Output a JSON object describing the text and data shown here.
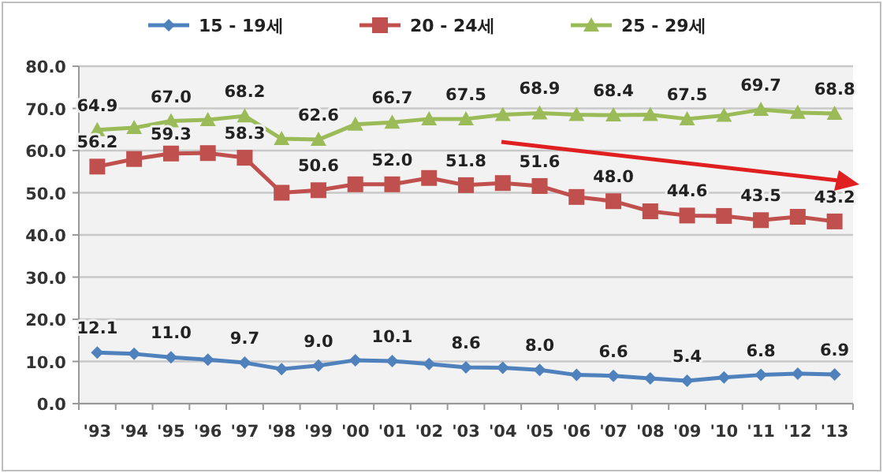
{
  "chart_data": {
    "type": "line",
    "categories": [
      "'93",
      "'94",
      "'95",
      "'96",
      "'97",
      "'98",
      "'99",
      "'00",
      "'01",
      "'02",
      "'03",
      "'04",
      "'05",
      "'06",
      "'07",
      "'08",
      "'09",
      "'10",
      "'11",
      "'12",
      "'13"
    ],
    "series": [
      {
        "name": "15 - 19세",
        "color": "#4f81bd",
        "marker": "diamond",
        "values": [
          12.1,
          11.8,
          11.0,
          10.4,
          9.7,
          8.2,
          9.0,
          10.3,
          10.1,
          9.4,
          8.6,
          8.5,
          8.0,
          6.8,
          6.6,
          6.0,
          5.4,
          6.2,
          6.8,
          7.1,
          6.9
        ],
        "value_labels": [
          "12.1",
          null,
          "11.0",
          null,
          "9.7",
          null,
          "9.0",
          null,
          "10.1",
          null,
          "8.6",
          null,
          "8.0",
          null,
          "6.6",
          null,
          "5.4",
          null,
          "6.8",
          null,
          "6.9"
        ]
      },
      {
        "name": "20 - 24세",
        "color": "#c0504d",
        "marker": "square",
        "values": [
          56.2,
          58.0,
          59.3,
          59.4,
          58.3,
          50.0,
          50.6,
          52.0,
          52.0,
          53.5,
          51.8,
          52.3,
          51.6,
          49.0,
          48.0,
          45.6,
          44.6,
          44.5,
          43.5,
          44.3,
          43.2
        ],
        "value_labels": [
          "56.2",
          null,
          "59.3",
          null,
          "58.3",
          null,
          "50.6",
          null,
          "52.0",
          null,
          "51.8",
          null,
          "51.6",
          null,
          "48.0",
          null,
          "44.6",
          null,
          "43.5",
          null,
          "43.2"
        ]
      },
      {
        "name": "25 - 29세",
        "color": "#9bbb59",
        "marker": "triangle",
        "values": [
          64.9,
          65.4,
          67.0,
          67.3,
          68.2,
          62.8,
          62.6,
          66.2,
          66.7,
          67.5,
          67.5,
          68.5,
          68.9,
          68.5,
          68.4,
          68.5,
          67.5,
          68.3,
          69.7,
          69.0,
          68.8
        ],
        "value_labels": [
          "64.9",
          null,
          "67.0",
          null,
          "68.2",
          null,
          "62.6",
          null,
          "66.7",
          null,
          "67.5",
          null,
          "68.9",
          null,
          "68.4",
          null,
          "67.5",
          null,
          "69.7",
          null,
          "68.8"
        ]
      }
    ],
    "ylim": [
      0,
      80
    ],
    "yticks": [
      {
        "value": 0,
        "label": "0.0"
      },
      {
        "value": 10,
        "label": "10.0"
      },
      {
        "value": 20,
        "label": "20.0"
      },
      {
        "value": 30,
        "label": "30.0"
      },
      {
        "value": 40,
        "label": "40.0"
      },
      {
        "value": 50,
        "label": "50.0"
      },
      {
        "value": 60,
        "label": "60.0"
      },
      {
        "value": 70,
        "label": "70.0"
      },
      {
        "value": 80,
        "label": "80.0"
      }
    ],
    "grid": "y",
    "legend": "top"
  }
}
